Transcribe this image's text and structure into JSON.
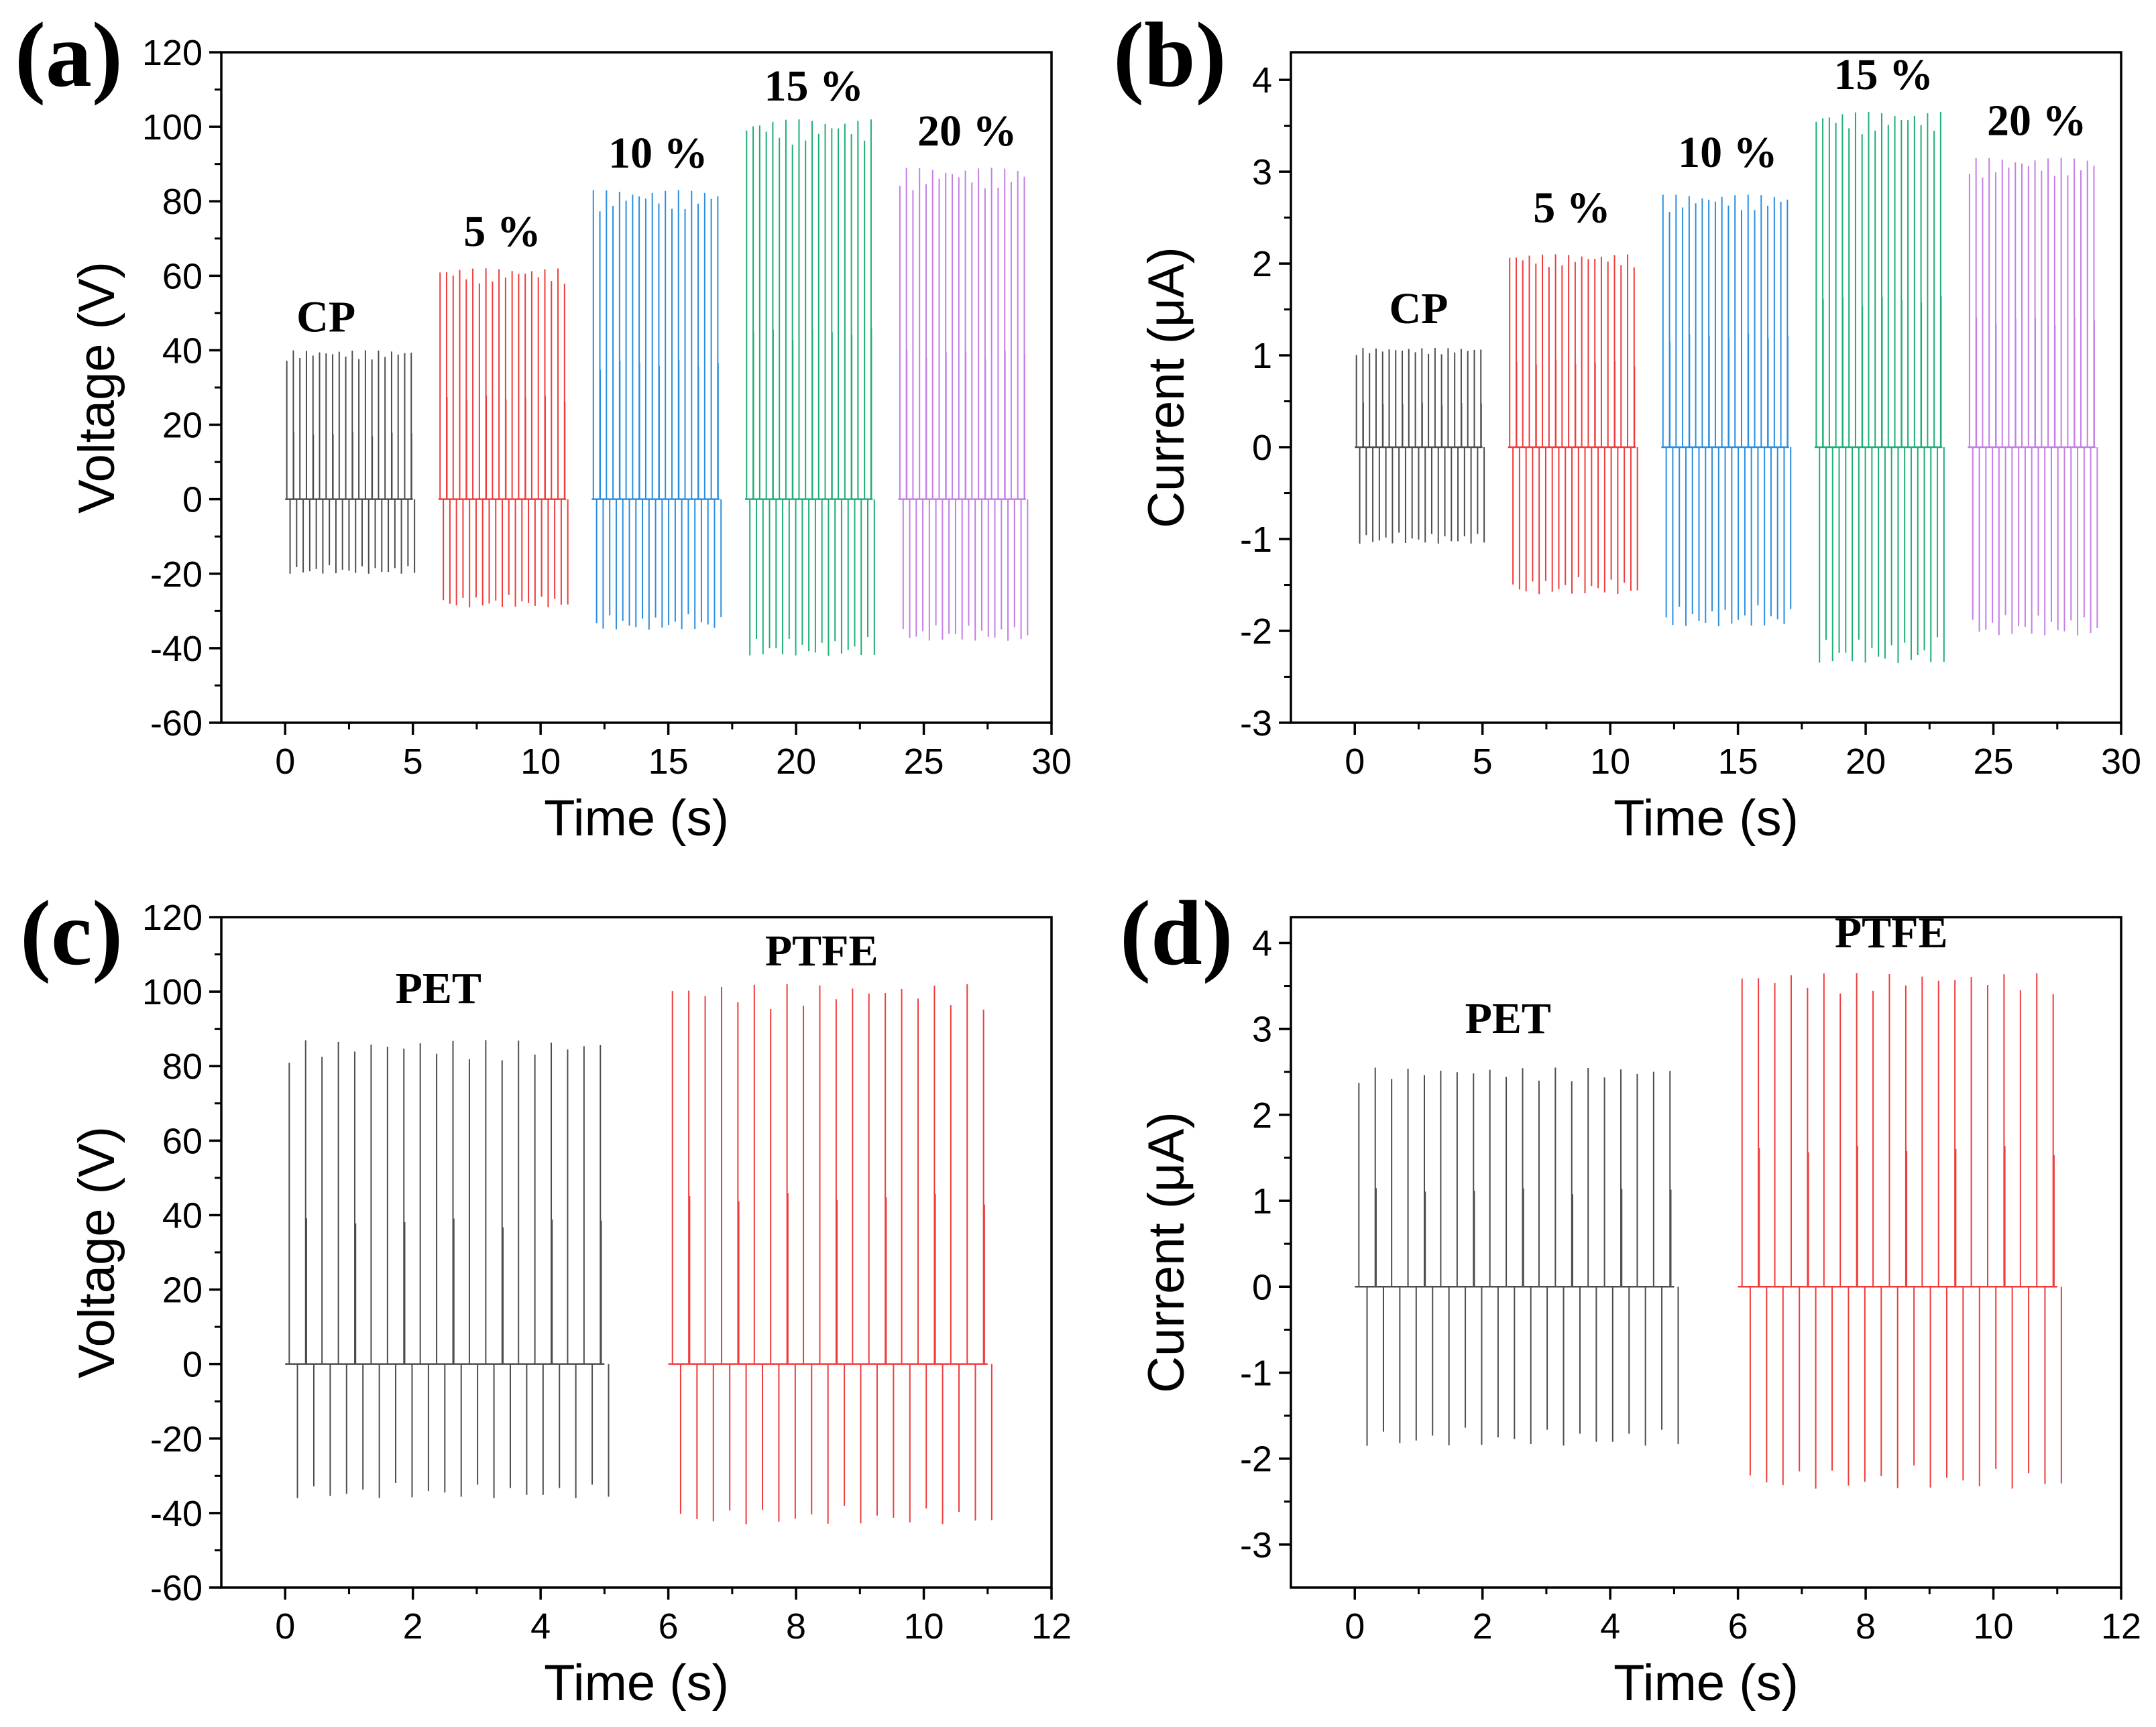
{
  "figure": {
    "panels": [
      "(a)",
      "(b)",
      "(c)",
      "(d)"
    ]
  },
  "chart_data": [
    {
      "panel": "(a)",
      "type": "line",
      "xlabel": "Time (s)",
      "ylabel": "Voltage (V)",
      "xlim": [
        -2.5,
        30
      ],
      "ylim": [
        -60,
        120
      ],
      "xticks": [
        0,
        5,
        10,
        15,
        20,
        25,
        30
      ],
      "yticks": [
        -60,
        -40,
        -20,
        0,
        20,
        40,
        60,
        80,
        100,
        120
      ],
      "series": [
        {
          "name": "CP",
          "color": "#4d4d4d",
          "t_start": 0,
          "t_end": 5,
          "peak_pos": 40,
          "peak_neg": -20
        },
        {
          "name": "5 %",
          "color": "#f03c3c",
          "t_start": 6,
          "t_end": 11,
          "peak_pos": 62,
          "peak_neg": -29
        },
        {
          "name": "10 %",
          "color": "#2b8ee0",
          "t_start": 12,
          "t_end": 17,
          "peak_pos": 83,
          "peak_neg": -35
        },
        {
          "name": "15 %",
          "color": "#1fae74",
          "t_start": 18,
          "t_end": 23,
          "peak_pos": 102,
          "peak_neg": -42
        },
        {
          "name": "20 %",
          "color": "#c37fe6",
          "t_start": 24,
          "t_end": 29,
          "peak_pos": 89,
          "peak_neg": -38
        }
      ],
      "annotations": [
        {
          "text": "CP",
          "x": 1.6,
          "y": 45
        },
        {
          "text": "5 %",
          "x": 8.5,
          "y": 68
        },
        {
          "text": "10 %",
          "x": 14.6,
          "y": 89
        },
        {
          "text": "15 %",
          "x": 20.7,
          "y": 107
        },
        {
          "text": "20 %",
          "x": 26.7,
          "y": 95
        }
      ]
    },
    {
      "panel": "(b)",
      "type": "line",
      "xlabel": "Time (s)",
      "ylabel": "Current (μA)",
      "xlim": [
        -2.5,
        30
      ],
      "ylim": [
        -3,
        4.3
      ],
      "xticks": [
        0,
        5,
        10,
        15,
        20,
        25,
        30
      ],
      "yticks": [
        -3,
        -2,
        -1,
        0,
        1,
        2,
        3,
        4
      ],
      "series": [
        {
          "name": "CP",
          "color": "#4d4d4d",
          "t_start": 0,
          "t_end": 5,
          "peak_pos": 1.08,
          "peak_neg": -1.05
        },
        {
          "name": "5 %",
          "color": "#f03c3c",
          "t_start": 6,
          "t_end": 11,
          "peak_pos": 2.1,
          "peak_neg": -1.6
        },
        {
          "name": "10 %",
          "color": "#2b8ee0",
          "t_start": 12,
          "t_end": 17,
          "peak_pos": 2.75,
          "peak_neg": -1.95
        },
        {
          "name": "15 %",
          "color": "#1fae74",
          "t_start": 18,
          "t_end": 23,
          "peak_pos": 3.65,
          "peak_neg": -2.35
        },
        {
          "name": "20 %",
          "color": "#c37fe6",
          "t_start": 24,
          "t_end": 29,
          "peak_pos": 3.15,
          "peak_neg": -2.05
        }
      ],
      "annotations": [
        {
          "text": "CP",
          "x": 2.5,
          "y": 1.35
        },
        {
          "text": "5 %",
          "x": 8.5,
          "y": 2.45
        },
        {
          "text": "10 %",
          "x": 14.6,
          "y": 3.05
        },
        {
          "text": "15 %",
          "x": 20.7,
          "y": 3.9
        },
        {
          "text": "20 %",
          "x": 26.7,
          "y": 3.4
        }
      ]
    },
    {
      "panel": "(c)",
      "type": "line",
      "xlabel": "Time (s)",
      "ylabel": "Voltage (V)",
      "xlim": [
        -1,
        12
      ],
      "ylim": [
        -60,
        120
      ],
      "xticks": [
        0,
        2,
        4,
        6,
        8,
        10,
        12
      ],
      "yticks": [
        -60,
        -40,
        -20,
        0,
        20,
        40,
        60,
        80,
        100,
        120
      ],
      "series": [
        {
          "name": "PET",
          "color": "#4d4d4d",
          "t_start": 0,
          "t_end": 5,
          "peak_pos": 87,
          "peak_neg": -36
        },
        {
          "name": "PTFE",
          "color": "#f03c3c",
          "t_start": 6,
          "t_end": 11,
          "peak_pos": 102,
          "peak_neg": -43
        }
      ],
      "annotations": [
        {
          "text": "PET",
          "x": 2.4,
          "y": 97
        },
        {
          "text": "PTFE",
          "x": 8.4,
          "y": 107
        }
      ]
    },
    {
      "panel": "(d)",
      "type": "line",
      "xlabel": "Time (s)",
      "ylabel": "Current (μA)",
      "xlim": [
        -1,
        12
      ],
      "ylim": [
        -3.5,
        4.3
      ],
      "xticks": [
        0,
        2,
        4,
        6,
        8,
        10,
        12
      ],
      "yticks": [
        -3,
        -2,
        -1,
        0,
        1,
        2,
        3,
        4
      ],
      "series": [
        {
          "name": "PET",
          "color": "#4d4d4d",
          "t_start": 0,
          "t_end": 5,
          "peak_pos": 2.55,
          "peak_neg": -1.85
        },
        {
          "name": "PTFE",
          "color": "#f03c3c",
          "t_start": 6,
          "t_end": 11,
          "peak_pos": 3.65,
          "peak_neg": -2.35
        }
      ],
      "annotations": [
        {
          "text": "PET",
          "x": 2.4,
          "y": 2.95
        },
        {
          "text": "PTFE",
          "x": 8.4,
          "y": 3.95
        }
      ]
    }
  ]
}
